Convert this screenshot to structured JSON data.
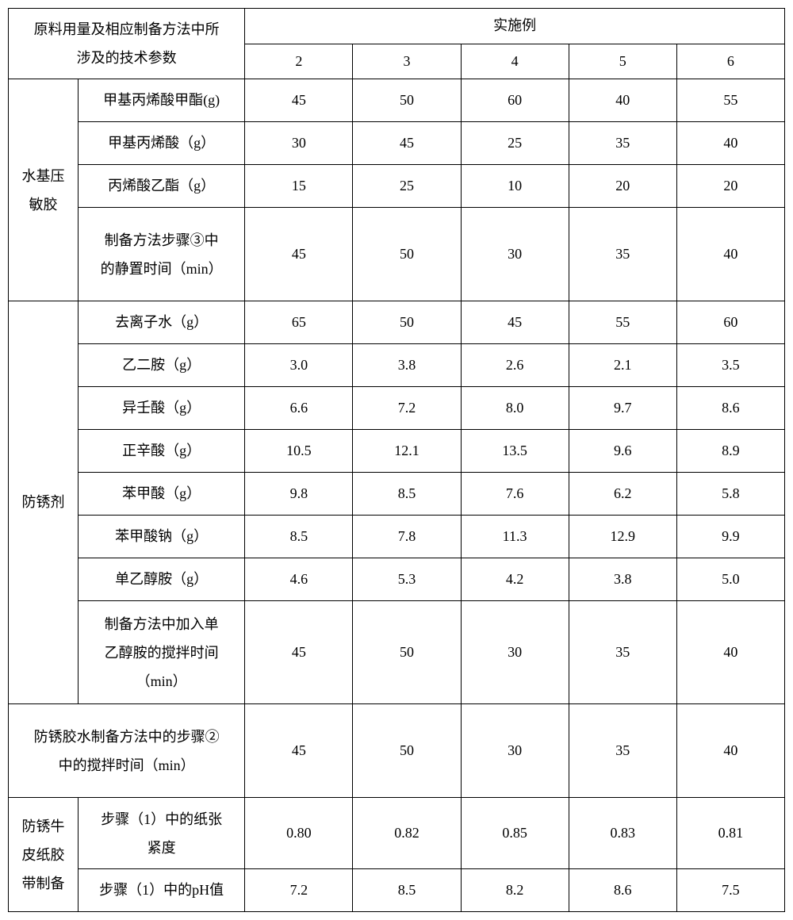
{
  "header": {
    "param_label": "原料用量及相应制备方法中所\n涉及的技术参数",
    "example_label": "实施例",
    "cols": [
      "2",
      "3",
      "4",
      "5",
      "6"
    ]
  },
  "section1": {
    "group_label": "水基压\n敏胶",
    "rows": [
      {
        "label": "甲基丙烯酸甲酯(g)",
        "vals": [
          "45",
          "50",
          "60",
          "40",
          "55"
        ]
      },
      {
        "label": "甲基丙烯酸（g）",
        "vals": [
          "30",
          "45",
          "25",
          "35",
          "40"
        ]
      },
      {
        "label": "丙烯酸乙酯（g）",
        "vals": [
          "15",
          "25",
          "10",
          "20",
          "20"
        ]
      },
      {
        "label": "制备方法步骤③中\n的静置时间（min）",
        "vals": [
          "45",
          "50",
          "30",
          "35",
          "40"
        ]
      }
    ]
  },
  "section2": {
    "group_label": "防锈剂",
    "rows": [
      {
        "label": "去离子水（g）",
        "vals": [
          "65",
          "50",
          "45",
          "55",
          "60"
        ]
      },
      {
        "label": "乙二胺（g）",
        "vals": [
          "3.0",
          "3.8",
          "2.6",
          "2.1",
          "3.5"
        ]
      },
      {
        "label": "异壬酸（g）",
        "vals": [
          "6.6",
          "7.2",
          "8.0",
          "9.7",
          "8.6"
        ]
      },
      {
        "label": "正辛酸（g）",
        "vals": [
          "10.5",
          "12.1",
          "13.5",
          "9.6",
          "8.9"
        ]
      },
      {
        "label": "苯甲酸（g）",
        "vals": [
          "9.8",
          "8.5",
          "7.6",
          "6.2",
          "5.8"
        ]
      },
      {
        "label": "苯甲酸钠（g）",
        "vals": [
          "8.5",
          "7.8",
          "11.3",
          "12.9",
          "9.9"
        ]
      },
      {
        "label": "单乙醇胺（g）",
        "vals": [
          "4.6",
          "5.3",
          "4.2",
          "3.8",
          "5.0"
        ]
      },
      {
        "label": "制备方法中加入单\n乙醇胺的搅拌时间\n（min）",
        "vals": [
          "45",
          "50",
          "30",
          "35",
          "40"
        ]
      }
    ]
  },
  "section3": {
    "merged_label": "防锈胶水制备方法中的步骤②\n中的搅拌时间（min）",
    "vals": [
      "45",
      "50",
      "30",
      "35",
      "40"
    ]
  },
  "section4": {
    "group_label": "防锈牛\n皮纸胶\n带制备",
    "rows": [
      {
        "label": "步骤（1）中的纸张\n紧度",
        "vals": [
          "0.80",
          "0.82",
          "0.85",
          "0.83",
          "0.81"
        ]
      },
      {
        "label": "步骤（1）中的pH值",
        "vals": [
          "7.2",
          "8.5",
          "8.2",
          "8.6",
          "7.5"
        ]
      }
    ]
  }
}
